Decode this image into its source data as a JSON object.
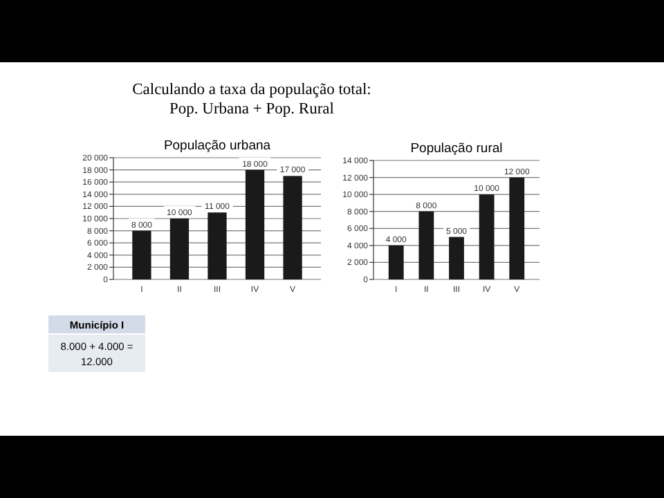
{
  "chart_data": [
    {
      "type": "bar",
      "title": "População urbana",
      "categories": [
        "I",
        "II",
        "III",
        "IV",
        "V"
      ],
      "values": [
        8000,
        10000,
        11000,
        18000,
        17000
      ],
      "color": "#1a1a1a",
      "value_labels": [
        "8 000",
        "10 000",
        "11 000",
        "18 000",
        "17 000"
      ],
      "ylim": [
        0,
        20000
      ],
      "yticks": [
        {
          "value": 0,
          "label": "0"
        },
        {
          "value": 2000,
          "label": "2 000"
        },
        {
          "value": 4000,
          "label": "4 000"
        },
        {
          "value": 6000,
          "label": "6 000"
        },
        {
          "value": 8000,
          "label": "8 000"
        },
        {
          "value": 10000,
          "label": "10 000"
        },
        {
          "value": 12000,
          "label": "12 000"
        },
        {
          "value": 14000,
          "label": "14 000"
        },
        {
          "value": 16000,
          "label": "16 000"
        },
        {
          "value": 18000,
          "label": "18 000"
        },
        {
          "value": 20000,
          "label": "20 000"
        }
      ],
      "grid": "y"
    },
    {
      "type": "bar",
      "title": "População rural",
      "categories": [
        "I",
        "II",
        "III",
        "IV",
        "V"
      ],
      "values": [
        4000,
        8000,
        5000,
        10000,
        12000
      ],
      "color": "#1a1a1a",
      "value_labels": [
        "4 000",
        "8 000",
        "5 000",
        "10 000",
        "12 000"
      ],
      "ylim": [
        0,
        14000
      ],
      "yticks": [
        {
          "value": 0,
          "label": "0"
        },
        {
          "value": 2000,
          "label": "2 000"
        },
        {
          "value": 4000,
          "label": "4 000"
        },
        {
          "value": 6000,
          "label": "6 000"
        },
        {
          "value": 8000,
          "label": "8 000"
        },
        {
          "value": 10000,
          "label": "10 000"
        },
        {
          "value": 12000,
          "label": "12 000"
        },
        {
          "value": 14000,
          "label": "14 000"
        }
      ],
      "grid": "y"
    },
    {
      "type": "other",
      "title": "Calculando a taxa da população total:",
      "subtitle": "Pop. Urbana + Pop. Rural",
      "annotations": [
        "Município I",
        "8.000 + 4.000 =",
        "12.000"
      ]
    }
  ]
}
